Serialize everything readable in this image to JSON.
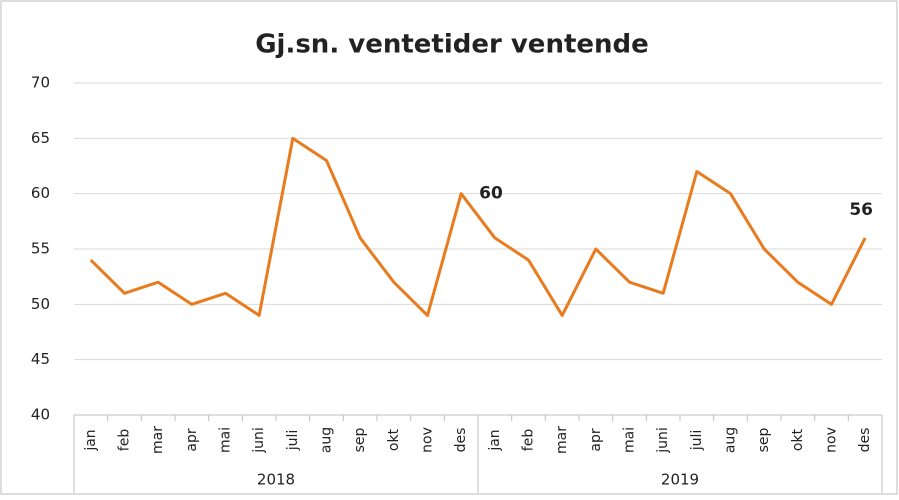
{
  "chart_data": {
    "type": "line",
    "title": "Gj.sn. ventetider ventende",
    "categories": [
      "jan",
      "feb",
      "mar",
      "apr",
      "mai",
      "juni",
      "juli",
      "aug",
      "sep",
      "okt",
      "nov",
      "des",
      "jan",
      "feb",
      "mar",
      "apr",
      "mai",
      "juni",
      "juli",
      "aug",
      "sep",
      "okt",
      "nov",
      "des"
    ],
    "groups": [
      {
        "label": "2018",
        "size": 12
      },
      {
        "label": "2019",
        "size": 12
      }
    ],
    "series": [
      {
        "name": "Gj.sn. ventetider ventende",
        "color": "#e87b1e",
        "values": [
          54,
          51,
          52,
          50,
          51,
          49,
          65,
          63,
          56,
          52,
          49,
          60,
          56,
          54,
          49,
          55,
          52,
          51,
          62,
          60,
          55,
          52,
          50,
          56
        ],
        "value_labels": [
          null,
          null,
          null,
          null,
          null,
          null,
          null,
          null,
          null,
          null,
          null,
          "60",
          null,
          null,
          null,
          null,
          null,
          null,
          null,
          null,
          null,
          null,
          null,
          "56"
        ]
      }
    ],
    "ylim": [
      40,
      70
    ],
    "yticks": [
      40,
      45,
      50,
      55,
      60,
      65,
      70
    ],
    "grid": true
  }
}
